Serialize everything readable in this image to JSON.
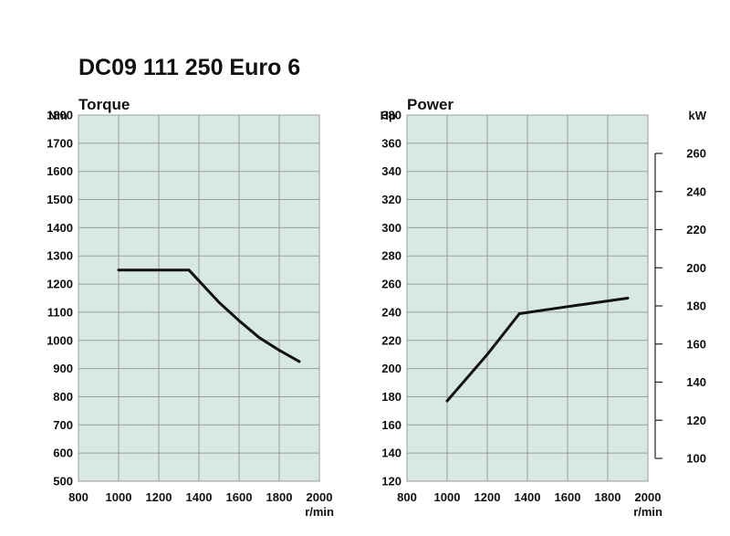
{
  "title": "DC09 111 250 Euro 6",
  "chart_data": [
    {
      "type": "line",
      "title": "Torque",
      "ylabel": "Nm",
      "xlabel": "r/min",
      "xlim": [
        800,
        2000
      ],
      "ylim": [
        500,
        1800
      ],
      "xticks": [
        800,
        1000,
        1200,
        1400,
        1600,
        1800,
        2000
      ],
      "yticks": [
        500,
        600,
        700,
        800,
        900,
        1000,
        1100,
        1200,
        1300,
        1400,
        1500,
        1600,
        1700,
        1800
      ],
      "grid": true,
      "series": [
        {
          "x": [
            1000,
            1350,
            1500,
            1600,
            1700,
            1800,
            1900
          ],
          "y": [
            1250,
            1250,
            1135,
            1070,
            1010,
            965,
            925
          ]
        }
      ]
    },
    {
      "type": "line",
      "title": "Power",
      "ylabel": "Hp",
      "y2label": "kW",
      "xlabel": "r/min",
      "xlim": [
        800,
        2000
      ],
      "ylim": [
        120,
        380
      ],
      "xticks": [
        800,
        1000,
        1200,
        1400,
        1600,
        1800,
        2000
      ],
      "yticks": [
        120,
        140,
        160,
        180,
        200,
        220,
        240,
        260,
        280,
        300,
        320,
        340,
        360,
        380
      ],
      "y2ticks": [
        100,
        120,
        140,
        160,
        180,
        200,
        220,
        240,
        260
      ],
      "grid": true,
      "series": [
        {
          "x": [
            1000,
            1200,
            1360,
            1600,
            1900
          ],
          "y": [
            177,
            210,
            239,
            244,
            250
          ]
        }
      ]
    }
  ],
  "colors": {
    "plot_bg": "#d8e9e5",
    "grid": "#9c9c9c",
    "line": "#111111"
  }
}
